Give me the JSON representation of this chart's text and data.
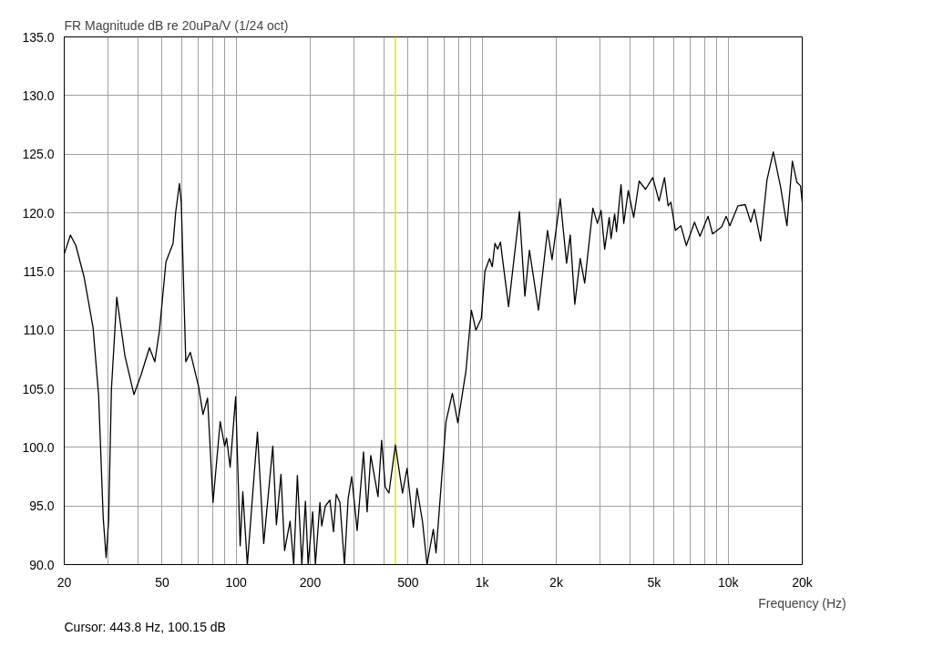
{
  "chart_data": {
    "type": "line",
    "title": "FR Magnitude dB re 20uPa/V (1/24 oct)",
    "xlabel": "Frequency (Hz)",
    "annotations": [
      "Cursor: 443.8 Hz, 100.15 dB"
    ],
    "log": "x",
    "grid": true,
    "marker": "none",
    "line_style": "solid",
    "xlim": [
      20,
      20000
    ],
    "ylim": [
      90,
      135
    ],
    "xticks": [
      20,
      {
        "value": 30,
        "label": null
      },
      {
        "value": 40,
        "label": null
      },
      50,
      {
        "value": 60,
        "label": null
      },
      {
        "value": 70,
        "label": null
      },
      {
        "value": 80,
        "label": null
      },
      {
        "value": 90,
        "label": null
      },
      100,
      200,
      {
        "value": 300,
        "label": null
      },
      {
        "value": 400,
        "label": null
      },
      500,
      {
        "value": 600,
        "label": null
      },
      {
        "value": 700,
        "label": null
      },
      {
        "value": 800,
        "label": null
      },
      {
        "value": 900,
        "label": null
      },
      {
        "value": 1000,
        "label": "1k"
      },
      {
        "value": 2000,
        "label": "2k"
      },
      {
        "value": 3000,
        "label": null
      },
      {
        "value": 4000,
        "label": null
      },
      {
        "value": 5000,
        "label": "5k"
      },
      {
        "value": 6000,
        "label": null
      },
      {
        "value": 7000,
        "label": null
      },
      {
        "value": 8000,
        "label": null
      },
      {
        "value": 9000,
        "label": null
      },
      {
        "value": 10000,
        "label": "10k"
      },
      {
        "value": 20000,
        "label": "20k"
      }
    ],
    "yticks": [
      {
        "value": 90,
        "label": "90.0"
      },
      {
        "value": 95,
        "label": "95.0"
      },
      {
        "value": 100,
        "label": "100.0"
      },
      {
        "value": 105,
        "label": "105.0"
      },
      {
        "value": 110,
        "label": "110.0"
      },
      {
        "value": 115,
        "label": "115.0"
      },
      {
        "value": 120,
        "label": "120.0"
      },
      {
        "value": 125,
        "label": "125.0"
      },
      {
        "value": 130,
        "label": "130.0"
      },
      {
        "value": 135,
        "label": "135.0"
      }
    ],
    "ref_lines": [
      {
        "axis": "x",
        "value": 443.8,
        "color": "#e6e600"
      }
    ],
    "series": [
      {
        "color": "#000000",
        "x": [
          20,
          20.3,
          21.2,
          22.3,
          24.1,
          26.2,
          27.6,
          28.8,
          29.6,
          30.3,
          31.1,
          32.7,
          35.3,
          38.4,
          41.1,
          44.4,
          46.7,
          48.8,
          51.8,
          55.4,
          56.8,
          58.8,
          59.8,
          62.4,
          65.1,
          70.3,
          73.3,
          76.5,
          80.5,
          86.1,
          89.8,
          91.4,
          94.5,
          99.5,
          103.8,
          106.4,
          111.0,
          122.0,
          129.4,
          140.9,
          145.7,
          152.1,
          157.3,
          165.6,
          171.3,
          177.3,
          184.9,
          191.2,
          196.1,
          204.6,
          209.9,
          219.0,
          222.7,
          230.4,
          240.4,
          248.7,
          255.1,
          264.0,
          275.5,
          285.1,
          294.9,
          310.3,
          329.3,
          340.6,
          352.4,
          377.1,
          390.2,
          403.7,
          417.7,
          443.8,
          474.2,
          494.8,
          525.1,
          543.3,
          571.7,
          596.5,
          632.9,
          649.2,
          712.7,
          756.4,
          795.9,
          858.9,
          903.7,
          942.8,
          992,
          1026,
          1071,
          1099,
          1127,
          1156,
          1186,
          1280,
          1417,
          1491,
          1556,
          1694,
          1843,
          1923,
          2076,
          2203,
          2280,
          2379,
          2503,
          2610,
          2818,
          2940,
          3042,
          3147,
          3284,
          3340,
          3455,
          3515,
          3667,
          3762,
          3925,
          4129,
          4346,
          4612,
          4935,
          5237,
          5509,
          5699,
          5846,
          6100,
          6421,
          6757,
          7294,
          7676,
          8281,
          8640,
          9404,
          9813,
          10152,
          10960,
          11728,
          12342,
          12767,
          13549,
          14377,
          15255,
          16328,
          17326,
          18231,
          19020,
          19678,
          20000
        ],
        "values": [
          116.5,
          116.9,
          118.1,
          117.2,
          114.5,
          110.2,
          104.4,
          94.0,
          90.6,
          93.7,
          104.9,
          112.8,
          107.8,
          104.5,
          106.2,
          108.5,
          107.3,
          110.0,
          115.8,
          117.4,
          120.1,
          122.5,
          120.9,
          107.3,
          108.1,
          105.2,
          102.8,
          104.2,
          95.3,
          102.2,
          100.1,
          100.8,
          98.3,
          104.3,
          91.6,
          96.2,
          90.0,
          101.3,
          91.8,
          100.1,
          93.4,
          97.7,
          91.2,
          93.7,
          90.0,
          97.6,
          90.0,
          95.4,
          90.0,
          94.5,
          90.0,
          95.3,
          93.3,
          95.0,
          95.5,
          92.8,
          96.0,
          95.3,
          90.0,
          95.6,
          97.5,
          92.9,
          99.6,
          94.5,
          99.3,
          95.8,
          100.6,
          96.6,
          96.1,
          100.2,
          96.1,
          98.2,
          93.2,
          96.5,
          93.7,
          90.0,
          93.0,
          91.0,
          102.2,
          104.6,
          102.1,
          106.5,
          111.7,
          110.0,
          111.0,
          115.0,
          116.1,
          115.4,
          117.4,
          116.9,
          117.5,
          112.0,
          120.1,
          112.9,
          116.8,
          111.7,
          118.5,
          116.0,
          121.2,
          115.7,
          118.1,
          112.2,
          116.1,
          114.0,
          120.4,
          119.1,
          120.2,
          116.9,
          119.6,
          117.8,
          119.9,
          118.4,
          122.4,
          119.1,
          121.9,
          119.6,
          122.7,
          122.0,
          123.0,
          121.0,
          123.0,
          120.6,
          120.9,
          118.5,
          118.9,
          117.2,
          119.2,
          118.0,
          119.7,
          118.2,
          118.8,
          119.7,
          118.9,
          120.6,
          120.7,
          119.2,
          120.3,
          117.6,
          122.8,
          125.2,
          122.2,
          118.9,
          124.4,
          122.6,
          122.3,
          120.9
        ]
      }
    ]
  }
}
